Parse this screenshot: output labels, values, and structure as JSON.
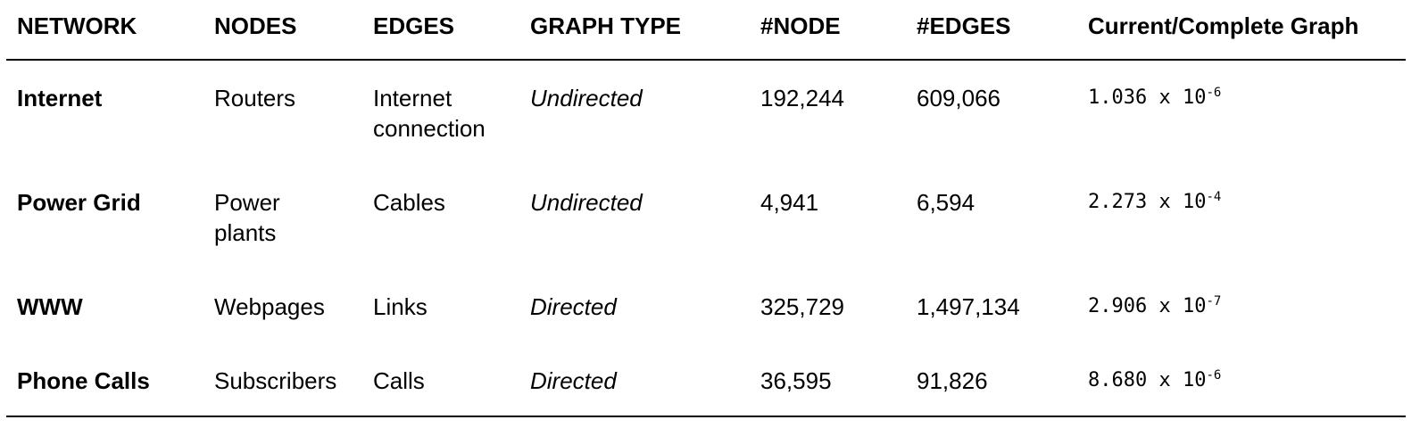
{
  "headers": [
    "NETWORK",
    "NODES",
    "EDGES",
    "GRAPH TYPE",
    "#NODE",
    "#EDGES",
    "Current/Complete Graph"
  ],
  "rows": [
    {
      "network": "Internet",
      "nodes": [
        "Routers"
      ],
      "edges": [
        "Internet",
        "connection"
      ],
      "graph_type": "Undirected",
      "node_count": "192,244",
      "edge_count": "609,066",
      "ratio_mantissa": "1.036 x 10",
      "ratio_exp": "-6"
    },
    {
      "network": "Power Grid",
      "nodes": [
        "Power",
        "plants"
      ],
      "edges": [
        "Cables"
      ],
      "graph_type": "Undirected",
      "node_count": "4,941",
      "edge_count": "6,594",
      "ratio_mantissa": "2.273 x 10",
      "ratio_exp": "-4"
    },
    {
      "network": "WWW",
      "nodes": [
        "Webpages"
      ],
      "edges": [
        "Links"
      ],
      "graph_type": "Directed",
      "node_count": "325,729",
      "edge_count": "1,497,134",
      "ratio_mantissa": "2.906 x 10",
      "ratio_exp": "-7"
    },
    {
      "network": "Phone Calls",
      "nodes": [
        "Subscribers"
      ],
      "edges": [
        "Calls"
      ],
      "graph_type": "Directed",
      "node_count": "36,595",
      "edge_count": "91,826",
      "ratio_mantissa": "8.680 x 10",
      "ratio_exp": "-6"
    }
  ]
}
